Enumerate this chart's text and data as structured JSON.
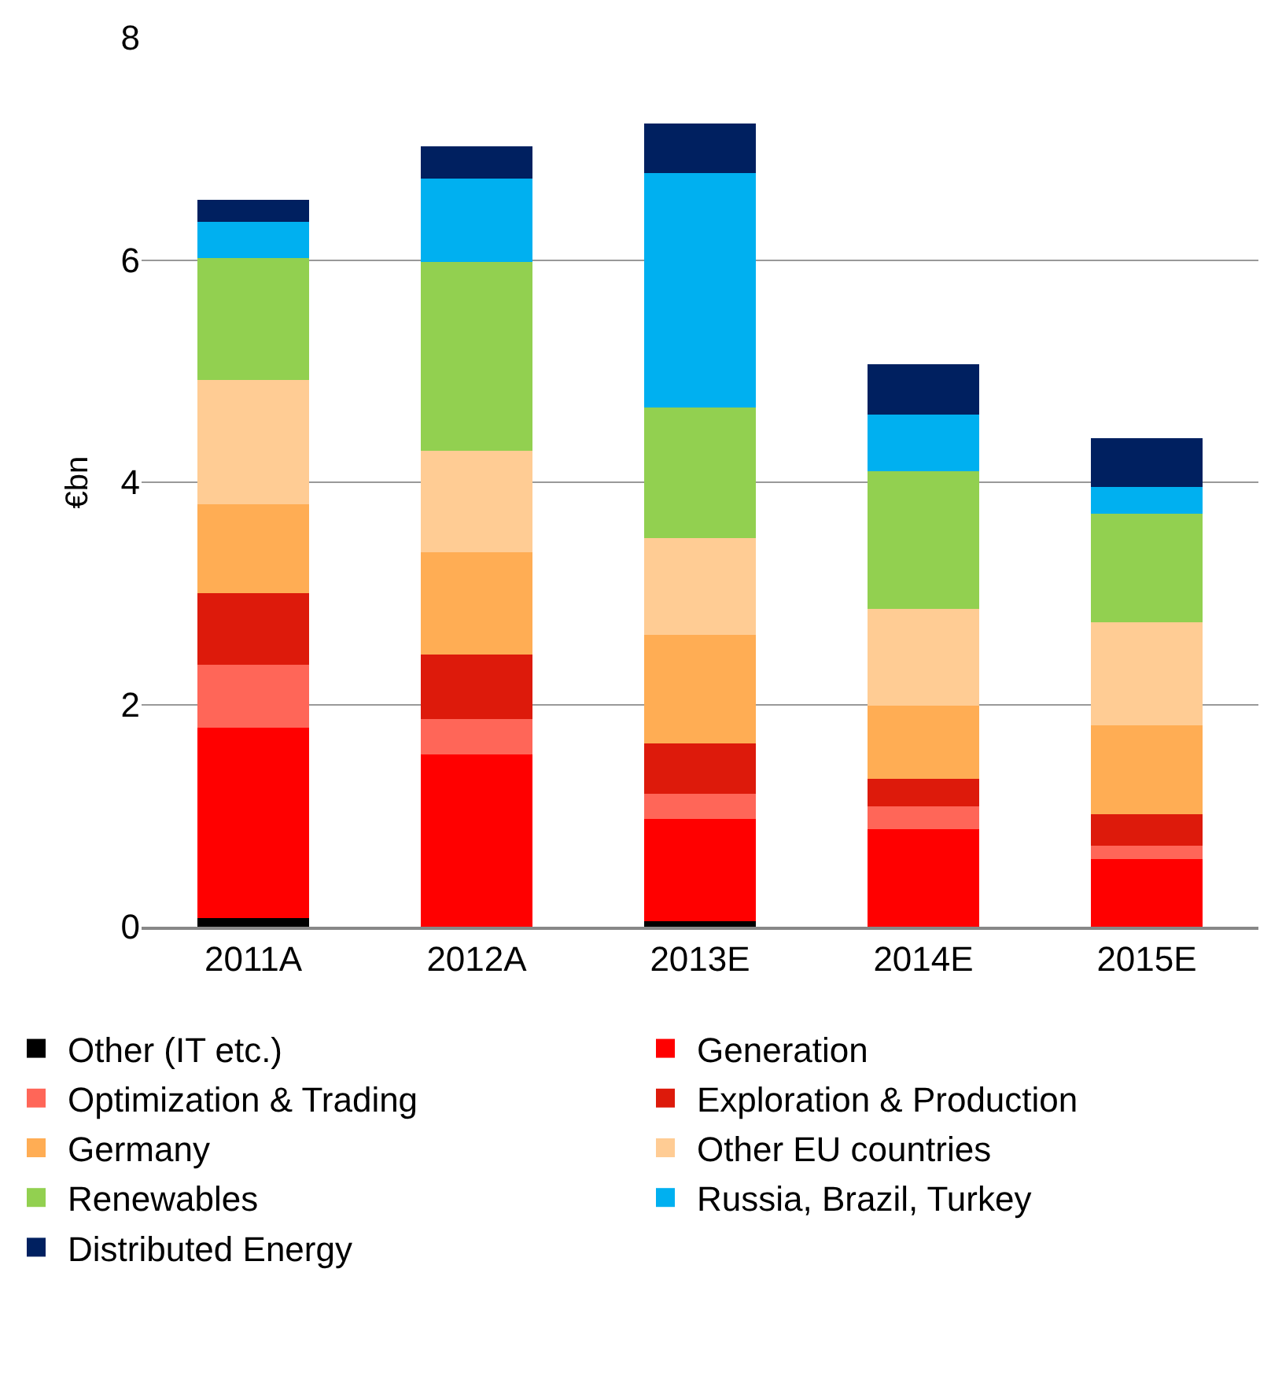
{
  "chart_data": {
    "type": "bar",
    "stacked": true,
    "ylabel": "€bn",
    "categories": [
      "2011A",
      "2012A",
      "2013E",
      "2014E",
      "2015E"
    ],
    "series": [
      {
        "name": "Other (IT etc.)",
        "color": "#000000",
        "values": [
          0.08,
          null,
          0.05,
          null,
          null
        ]
      },
      {
        "name": "Generation",
        "color": "#ff0000",
        "values": [
          1.71,
          1.55,
          0.92,
          0.88,
          0.61
        ]
      },
      {
        "name": "Optimization & Trading",
        "color": "#ff6658",
        "values": [
          0.57,
          0.32,
          0.23,
          0.2,
          0.12
        ]
      },
      {
        "name": "Exploration & Production",
        "color": "#dd1a0b",
        "values": [
          0.64,
          0.58,
          0.45,
          0.25,
          0.28
        ]
      },
      {
        "name": "Germany",
        "color": "#ffad54",
        "values": [
          0.8,
          0.92,
          0.98,
          0.66,
          0.8
        ]
      },
      {
        "name": "Other EU countries",
        "color": "#ffcc94",
        "values": [
          1.12,
          0.91,
          0.87,
          0.87,
          0.93
        ]
      },
      {
        "name": "Renewables",
        "color": "#92d050",
        "values": [
          1.1,
          1.7,
          1.17,
          1.24,
          0.98
        ]
      },
      {
        "name": "Russia, Brazil, Turkey",
        "color": "#00b0f0",
        "values": [
          0.32,
          0.75,
          2.11,
          0.51,
          0.24
        ]
      },
      {
        "name": "Distributed Energy",
        "color": "#002060",
        "values": [
          0.2,
          0.29,
          0.45,
          0.45,
          0.44
        ]
      }
    ],
    "ylim": [
      0,
      8
    ],
    "yticks": [
      0,
      2,
      4,
      6,
      8
    ],
    "grid": "y",
    "legend": "bottom"
  }
}
